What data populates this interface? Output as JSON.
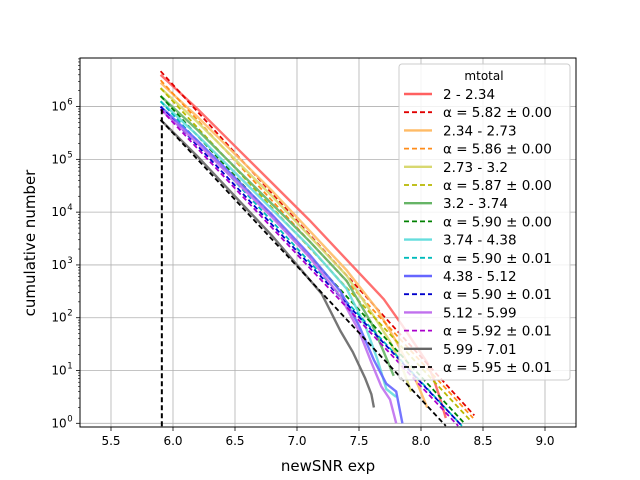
{
  "chart_data": {
    "type": "line",
    "title": "",
    "xlabel": "newSNR exp",
    "ylabel": "cumulative number",
    "xlim": [
      5.25,
      9.25
    ],
    "ylim_log10": [
      -0.07,
      6.92
    ],
    "yscale": "log",
    "grid": true,
    "legend_title": "mtotal",
    "legend_position": "upper right",
    "xticks": [
      "5.5",
      "6.0",
      "6.5",
      "7.0",
      "7.5",
      "8.0",
      "8.5",
      "9.0"
    ],
    "xtick_values": [
      5.5,
      6.0,
      6.5,
      7.0,
      7.5,
      8.0,
      8.5,
      9.0
    ],
    "yticks": [
      {
        "base": "10",
        "exp": "0",
        "value": 0
      },
      {
        "base": "10",
        "exp": "1",
        "value": 1
      },
      {
        "base": "10",
        "exp": "2",
        "value": 2
      },
      {
        "base": "10",
        "exp": "3",
        "value": 3
      },
      {
        "base": "10",
        "exp": "4",
        "value": 4
      },
      {
        "base": "10",
        "exp": "5",
        "value": 5
      },
      {
        "base": "10",
        "exp": "6",
        "value": 6
      }
    ],
    "series": [
      {
        "name": "2 - 2.34",
        "color": "#ff6060",
        "x": [
          5.9,
          6.2,
          6.5,
          6.8,
          7.1,
          7.4,
          7.7,
          7.85,
          7.95,
          8.05,
          8.1,
          8.15,
          8.2
        ],
        "log10y": [
          6.6,
          5.95,
          5.25,
          4.55,
          3.85,
          3.1,
          2.35,
          1.85,
          1.5,
          1.15,
          0.85,
          0.5,
          0.1
        ]
      },
      {
        "name": "α = 5.82 ± 0.00",
        "color": "#e00000",
        "dashed": true,
        "x": [
          5.9,
          8.43
        ],
        "log10y": [
          6.67,
          0.15
        ]
      },
      {
        "name": "2.34 - 2.73",
        "color": "#ffbb66",
        "x": [
          5.9,
          6.2,
          6.5,
          6.8,
          7.1,
          7.4,
          7.65,
          7.8,
          7.9,
          7.98,
          8.05
        ],
        "log10y": [
          6.45,
          5.8,
          5.1,
          4.4,
          3.65,
          2.9,
          2.15,
          1.55,
          1.1,
          0.7,
          0.3
        ]
      },
      {
        "name": "α = 5.86 ± 0.00",
        "color": "#ff8c1a",
        "dashed": true,
        "x": [
          5.9,
          8.42
        ],
        "log10y": [
          6.5,
          0.1
        ]
      },
      {
        "name": "2.73 - 3.2",
        "color": "#d8d870",
        "x": [
          5.9,
          6.2,
          6.5,
          6.8,
          7.1,
          7.4,
          7.6,
          7.75,
          7.85,
          7.92
        ],
        "log10y": [
          6.35,
          5.7,
          5.0,
          4.3,
          3.55,
          2.8,
          2.1,
          1.55,
          1.05,
          0.6
        ]
      },
      {
        "name": "α = 5.87 ± 0.00",
        "color": "#b8b800",
        "dashed": true,
        "x": [
          5.9,
          8.4
        ],
        "log10y": [
          6.35,
          0.05
        ]
      },
      {
        "name": "3.2 - 3.74",
        "color": "#66b466",
        "x": [
          5.9,
          6.2,
          6.5,
          6.8,
          7.1,
          7.4,
          7.6,
          7.7,
          7.78
        ],
        "log10y": [
          6.2,
          5.55,
          4.85,
          4.15,
          3.45,
          2.7,
          1.9,
          1.35,
          0.9
        ]
      },
      {
        "name": "α = 5.90 ± 0.00",
        "color": "#008000",
        "dashed": true,
        "x": [
          5.9,
          8.35
        ],
        "log10y": [
          6.2,
          0.0
        ]
      },
      {
        "name": "3.74 - 4.38",
        "color": "#66dddd",
        "x": [
          5.9,
          6.2,
          6.5,
          6.8,
          7.1,
          7.4,
          7.55,
          7.65,
          7.72,
          7.8
        ],
        "log10y": [
          6.1,
          5.45,
          4.75,
          4.05,
          3.35,
          2.55,
          1.85,
          1.2,
          0.65,
          0.5
        ]
      },
      {
        "name": "α = 5.90 ± 0.01",
        "color": "#00bbbb",
        "dashed": true,
        "x": [
          5.9,
          8.33
        ],
        "log10y": [
          6.1,
          -0.05
        ]
      },
      {
        "name": "4.38 - 5.12",
        "color": "#6666ff",
        "x": [
          5.9,
          6.2,
          6.5,
          6.8,
          7.1,
          7.35,
          7.5,
          7.62,
          7.72,
          7.8,
          7.85
        ],
        "log10y": [
          6.0,
          5.35,
          4.65,
          3.95,
          3.2,
          2.5,
          1.85,
          1.2,
          0.75,
          0.6,
          0.0
        ]
      },
      {
        "name": "α = 5.90 ± 0.01",
        "color": "#0000cc",
        "dashed": true,
        "x": [
          5.9,
          8.33
        ],
        "log10y": [
          6.0,
          -0.05
        ]
      },
      {
        "name": "5.12 - 5.99",
        "color": "#c070ee",
        "x": [
          5.9,
          6.2,
          6.5,
          6.8,
          7.1,
          7.35,
          7.5,
          7.6,
          7.68,
          7.75,
          7.8
        ],
        "log10y": [
          5.95,
          5.3,
          4.6,
          3.9,
          3.15,
          2.4,
          1.75,
          1.15,
          0.7,
          0.45,
          0.0
        ]
      },
      {
        "name": "α = 5.92 ± 0.01",
        "color": "#aa00cc",
        "dashed": true,
        "x": [
          5.9,
          8.3
        ],
        "log10y": [
          5.95,
          -0.05
        ]
      },
      {
        "name": "5.99 - 7.01",
        "color": "#666666",
        "x": [
          5.9,
          6.2,
          6.5,
          6.8,
          7.0,
          7.2,
          7.35,
          7.45,
          7.55,
          7.6,
          7.62
        ],
        "log10y": [
          5.75,
          5.05,
          4.3,
          3.55,
          3.0,
          2.45,
          1.75,
          1.35,
          0.85,
          0.55,
          0.3
        ]
      },
      {
        "name": "α = 5.95 ± 0.01",
        "color": "#000000",
        "dashed": true,
        "x": [
          5.9,
          8.2
        ],
        "log10y": [
          5.75,
          -0.05
        ]
      }
    ],
    "vertical_drop": {
      "x": 5.91,
      "from_log10y": 5.95
    }
  }
}
